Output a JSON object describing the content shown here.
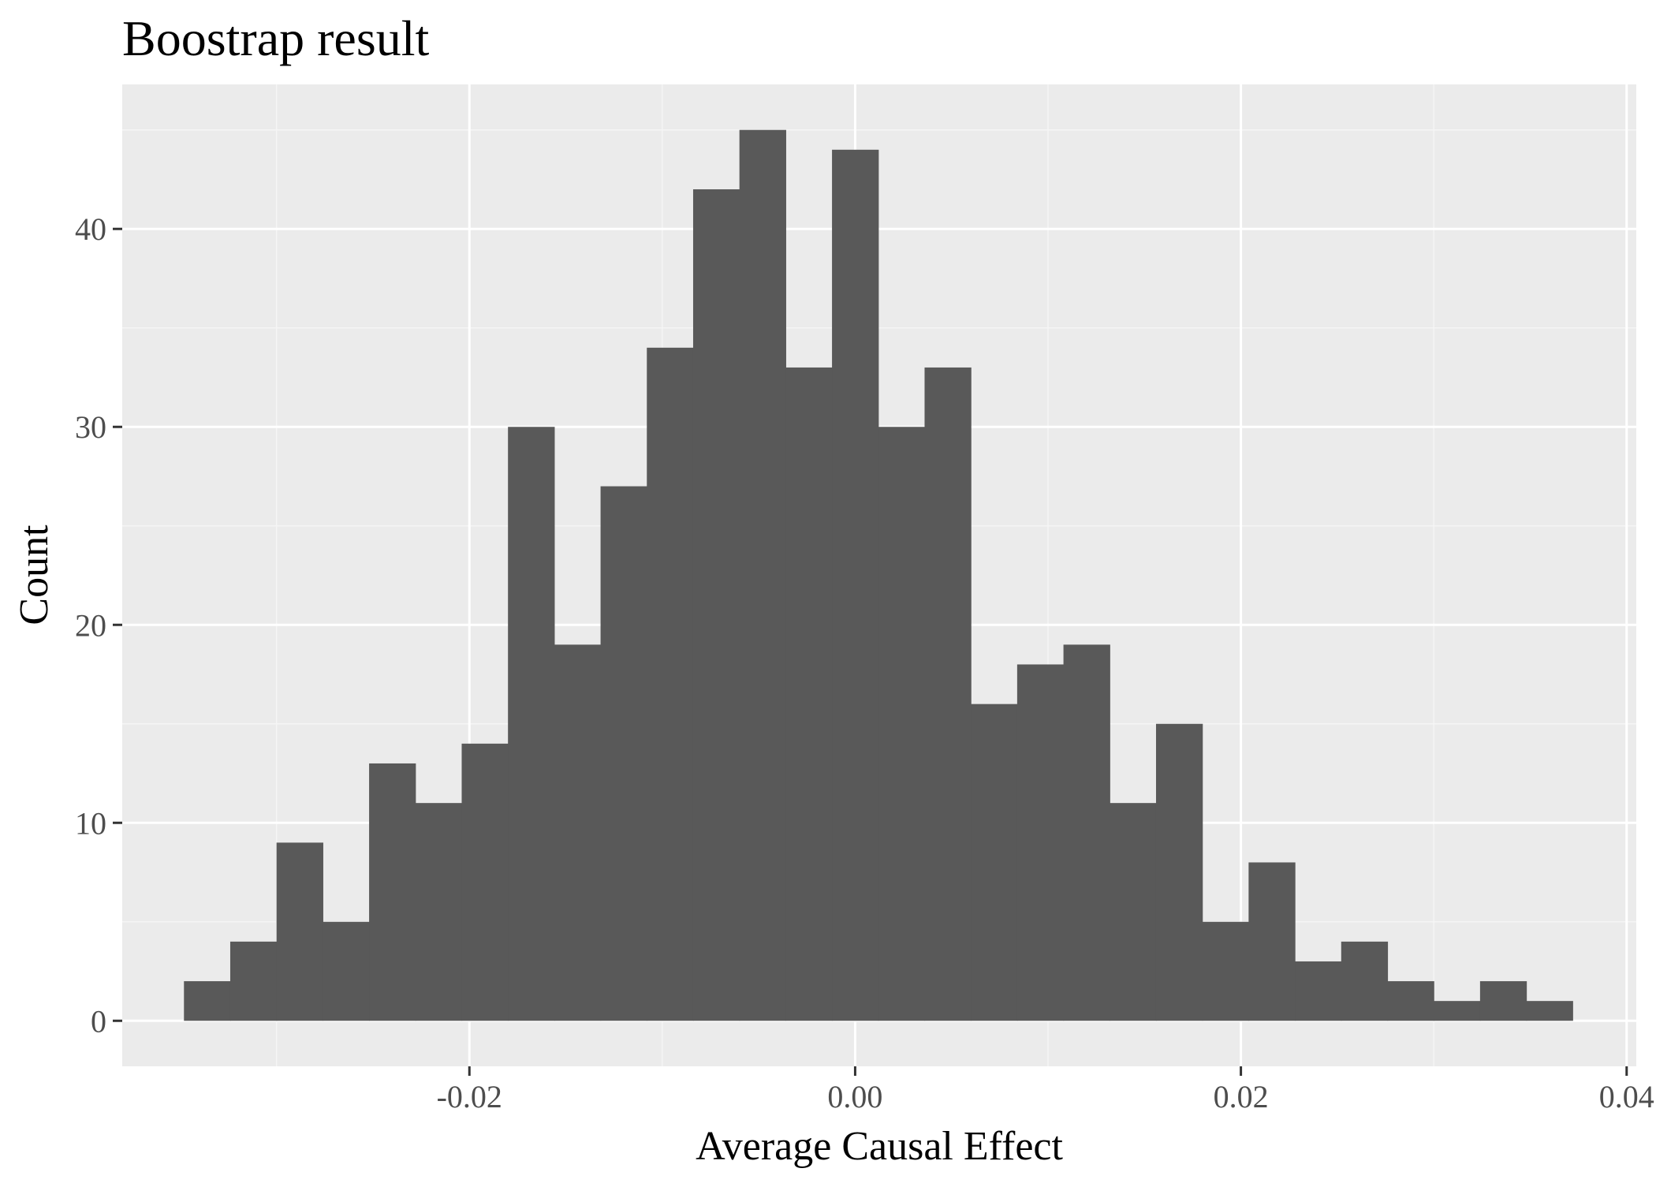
{
  "chart_data": {
    "type": "bar",
    "title": "Boostrap result",
    "xlabel": "Average Causal Effect",
    "ylabel": "Count",
    "bin_width": 0.0024,
    "bin_start": -0.0348,
    "counts": [
      2,
      4,
      9,
      5,
      13,
      11,
      14,
      30,
      19,
      27,
      34,
      42,
      45,
      33,
      44,
      30,
      33,
      16,
      18,
      19,
      11,
      15,
      5,
      8,
      3,
      4,
      2,
      1,
      2,
      1
    ],
    "xlim": [
      -0.038,
      0.0405
    ],
    "ylim": [
      -2.3,
      47.3
    ],
    "x_major_ticks": [
      -0.02,
      0.0,
      0.02,
      0.04
    ],
    "x_tick_labels": [
      "-0.02",
      "0.00",
      "0.02",
      "0.04"
    ],
    "x_minor_ticks": [
      -0.03,
      -0.01,
      0.01,
      0.03
    ],
    "y_major_ticks": [
      0,
      10,
      20,
      30,
      40
    ],
    "y_tick_labels": [
      "0",
      "10",
      "20",
      "30",
      "40"
    ],
    "y_minor_ticks": [
      5,
      15,
      25,
      35,
      45
    ],
    "grid": true,
    "legend": "none",
    "colors": {
      "bar": "#595959",
      "panel": "#ebebeb",
      "grid_major": "#ffffff",
      "grid_minor": "#f5f5f5",
      "tick": "#333333",
      "tick_label": "#4d4d4d"
    }
  }
}
